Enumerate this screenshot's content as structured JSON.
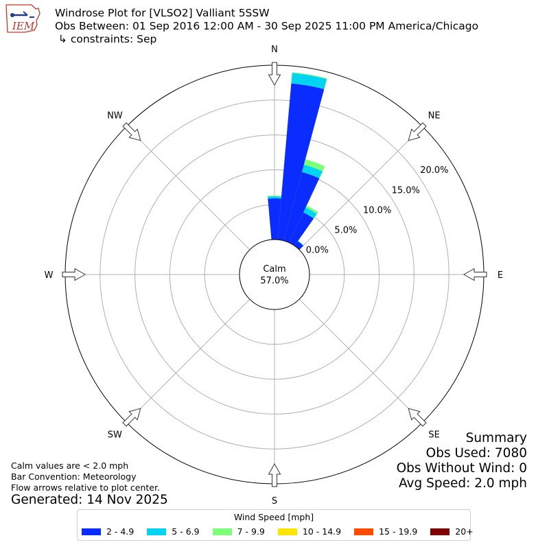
{
  "header": {
    "title": "Windrose Plot for [VLSO2] Valliant 5SSW",
    "obs_between": "Obs Between: 01 Sep 2016 12:00 AM - 30 Sep 2025 11:00 PM America/Chicago",
    "constraints": " ↳ constraints: Sep",
    "logo_text": "IEM"
  },
  "summary": {
    "title": "Summary",
    "obs_used": "Obs Used: 7080",
    "obs_without_wind": "Obs Without Wind: 0",
    "avg_speed": "Avg Speed: 2.0 mph"
  },
  "notes": {
    "calm_note": "Calm values are < 2.0 mph",
    "bar_convention": "Bar Convention: Meteorology",
    "flow_arrows": "Flow arrows relative to plot center.",
    "generated": "Generated: 14 Nov 2025"
  },
  "legend": {
    "title": "Wind Speed [mph]",
    "items": [
      {
        "label": "2 - 4.9",
        "color": "#0a2cff"
      },
      {
        "label": "5 - 6.9",
        "color": "#00d4f0"
      },
      {
        "label": "7 - 9.9",
        "color": "#7dff7a"
      },
      {
        "label": "10 - 14.9",
        "color": "#ffe600"
      },
      {
        "label": "15 - 19.9",
        "color": "#ff4a00"
      },
      {
        "label": "20+",
        "color": "#7f0000"
      }
    ]
  },
  "chart_data": {
    "type": "windrose",
    "calm": {
      "label": "Calm",
      "value_label": "57.0%",
      "percent": 57.0
    },
    "directions": [
      "N",
      "NE",
      "E",
      "SE",
      "S",
      "SW",
      "W",
      "NW"
    ],
    "radial_tick_labels": [
      "0.0%",
      "5.0%",
      "10.0%",
      "15.0%",
      "20.0%"
    ],
    "radial_ticks": [
      0,
      5,
      10,
      15,
      20
    ],
    "rmax": 25,
    "grid": true,
    "bin_width_deg": 10,
    "speed_bins": [
      "2 - 4.9",
      "5 - 6.9",
      "7 - 9.9",
      "10 - 14.9",
      "15 - 19.9",
      "20+"
    ],
    "bars": [
      {
        "direction_deg": 0,
        "values": [
          5.9,
          0.3,
          0.1,
          0,
          0,
          0
        ]
      },
      {
        "direction_deg": 10,
        "values": [
          22.5,
          1.5,
          0.1,
          0,
          0,
          0
        ]
      },
      {
        "direction_deg": 20,
        "values": [
          10.2,
          1.1,
          0.8,
          0,
          0,
          0
        ]
      },
      {
        "direction_deg": 30,
        "values": [
          4.8,
          0.8,
          0.3,
          0,
          0,
          0
        ]
      },
      {
        "direction_deg": 40,
        "values": [
          0.8,
          0.1,
          0,
          0,
          0,
          0
        ]
      }
    ]
  }
}
